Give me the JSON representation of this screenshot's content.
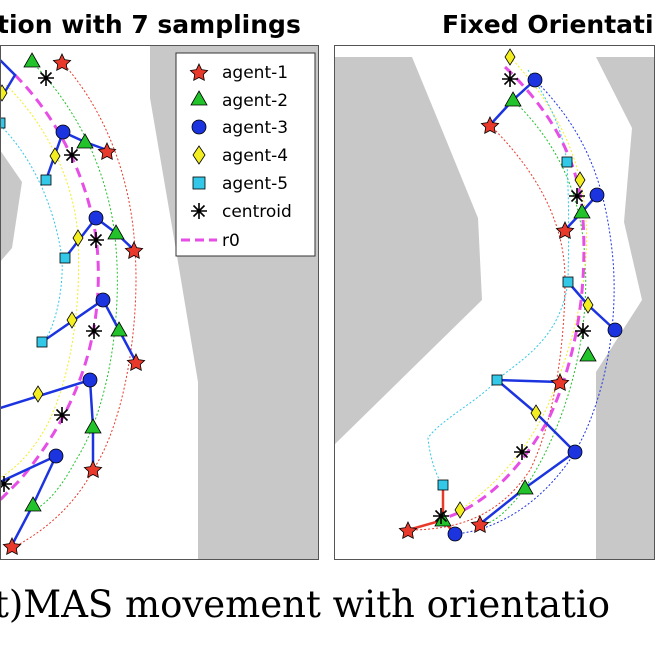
{
  "panels": [
    {
      "title": "tion with 7 samplings"
    },
    {
      "title": "Fixed Orientati"
    }
  ],
  "legend": {
    "items": [
      {
        "label": "agent-1",
        "marker": "star",
        "color": "#e8392b"
      },
      {
        "label": "agent-2",
        "marker": "triangle",
        "color": "#22c22a"
      },
      {
        "label": "agent-3",
        "marker": "circle",
        "color": "#1c34e0"
      },
      {
        "label": "agent-4",
        "marker": "diamond",
        "color": "#f2ee22"
      },
      {
        "label": "agent-5",
        "marker": "square",
        "color": "#33c8e8"
      },
      {
        "label": "centroid",
        "marker": "asterisk",
        "color": "#000000"
      },
      {
        "label": "r0",
        "marker": "dashed-line",
        "color": "#e64ee6"
      }
    ]
  },
  "caption": "t)MAS movement with orientatio",
  "colors": {
    "obstacle": "#c8c8c8",
    "formation_link": "#1c34e0",
    "formation_link_alt": "#e8392b",
    "reference_path": "#e64ee6"
  }
}
